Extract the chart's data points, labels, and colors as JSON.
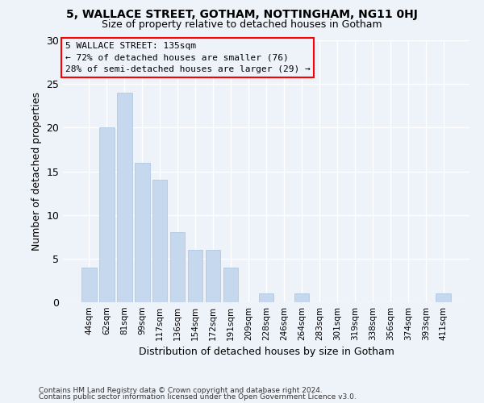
{
  "title": "5, WALLACE STREET, GOTHAM, NOTTINGHAM, NG11 0HJ",
  "subtitle": "Size of property relative to detached houses in Gotham",
  "xlabel": "Distribution of detached houses by size in Gotham",
  "ylabel": "Number of detached properties",
  "footnote1": "Contains HM Land Registry data © Crown copyright and database right 2024.",
  "footnote2": "Contains public sector information licensed under the Open Government Licence v3.0.",
  "categories": [
    "44sqm",
    "62sqm",
    "81sqm",
    "99sqm",
    "117sqm",
    "136sqm",
    "154sqm",
    "172sqm",
    "191sqm",
    "209sqm",
    "228sqm",
    "246sqm",
    "264sqm",
    "283sqm",
    "301sqm",
    "319sqm",
    "338sqm",
    "356sqm",
    "374sqm",
    "393sqm",
    "411sqm"
  ],
  "values": [
    4,
    20,
    24,
    16,
    14,
    8,
    6,
    6,
    4,
    0,
    1,
    0,
    1,
    0,
    0,
    0,
    0,
    0,
    0,
    0,
    1
  ],
  "bar_color": "#c5d8ed",
  "bar_edge_color": "#a8c4e0",
  "ylim": [
    0,
    30
  ],
  "yticks": [
    0,
    5,
    10,
    15,
    20,
    25,
    30
  ],
  "annotation_title": "5 WALLACE STREET: 135sqm",
  "annotation_line1": "← 72% of detached houses are smaller (76)",
  "annotation_line2": "28% of semi-detached houses are larger (29) →",
  "background_color": "#eef2f9"
}
